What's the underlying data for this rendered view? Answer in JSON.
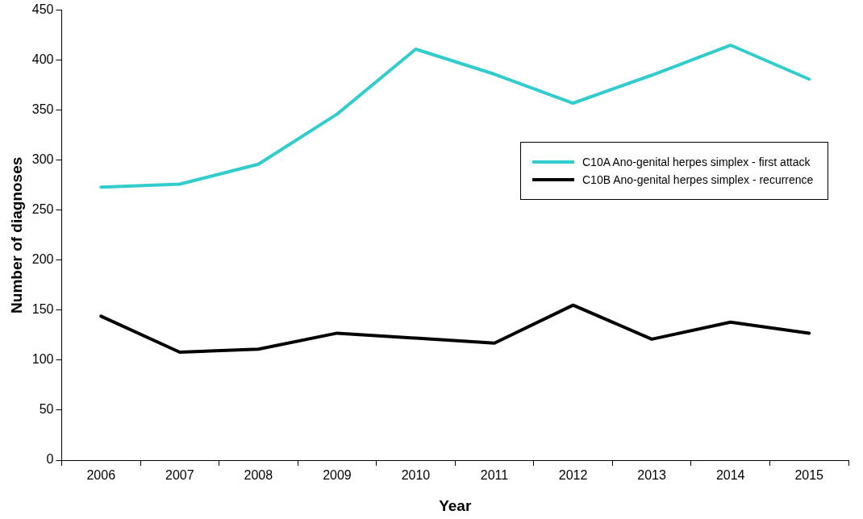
{
  "chart_data": {
    "type": "line",
    "xlabel": "Year",
    "ylabel": "Number of diagnoses",
    "categories": [
      "2006",
      "2007",
      "2008",
      "2009",
      "2010",
      "2011",
      "2012",
      "2013",
      "2014",
      "2015"
    ],
    "series": [
      {
        "name": "C10A Ano-genital herpes simplex - first attack",
        "color": "#33cccc",
        "values": [
          273,
          276,
          296,
          346,
          411,
          386,
          357,
          385,
          415,
          381
        ]
      },
      {
        "name": "C10B Ano-genital herpes simplex - recurrence",
        "color": "#000000",
        "values": [
          144,
          108,
          111,
          127,
          122,
          117,
          155,
          121,
          138,
          127
        ]
      }
    ],
    "ylim": [
      0,
      450
    ],
    "yticks": [
      0,
      50,
      100,
      150,
      200,
      250,
      300,
      350,
      400,
      450
    ],
    "grid": false,
    "legend": "right",
    "marker": "none",
    "line_style": "solid"
  }
}
